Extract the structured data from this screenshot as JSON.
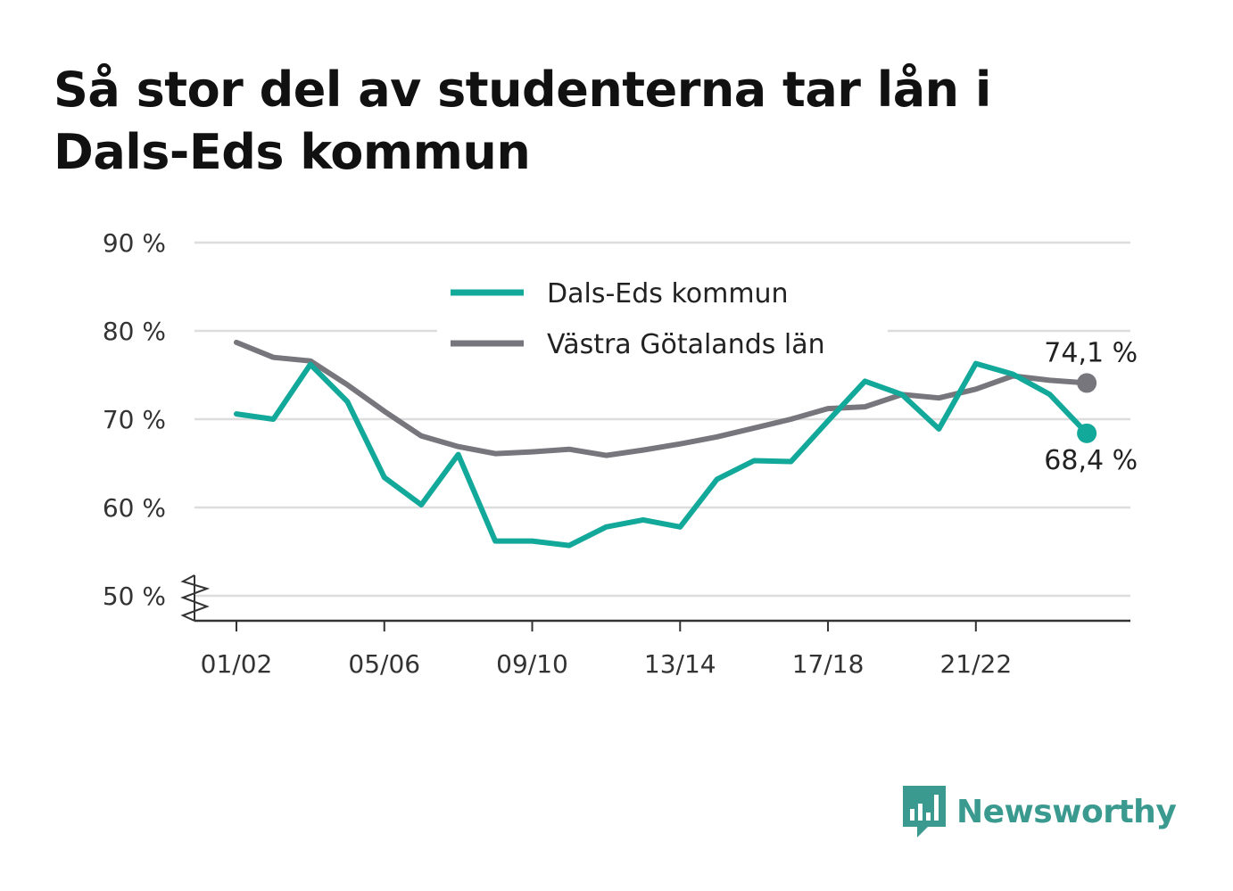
{
  "title": "Så stor del av studenterna tar lån i Dals-Eds kommun",
  "brand": {
    "name": "Newsworthy",
    "icon": "newsworthy-logo-icon",
    "color": "#3a9a90"
  },
  "chart_data": {
    "type": "line",
    "title": "Så stor del av studenterna tar lån i Dals-Eds kommun",
    "xlabel": "",
    "ylabel": "",
    "ylim": [
      50,
      90
    ],
    "y_ticks": [
      50,
      60,
      70,
      80,
      90
    ],
    "y_tick_labels": [
      "50 %",
      "60 %",
      "70 %",
      "80 %",
      "90 %"
    ],
    "y_axis_break": true,
    "grid": true,
    "legend_position": "top-center",
    "x": [
      "01/02",
      "02/03",
      "03/04",
      "04/05",
      "05/06",
      "06/07",
      "07/08",
      "08/09",
      "09/10",
      "10/11",
      "11/12",
      "12/13",
      "13/14",
      "14/15",
      "15/16",
      "16/17",
      "17/18",
      "18/19",
      "19/20",
      "20/21",
      "21/22",
      "22/23",
      "23/24",
      "24/25"
    ],
    "x_tick_labels": [
      "01/02",
      "05/06",
      "09/10",
      "13/14",
      "17/18",
      "21/22"
    ],
    "series": [
      {
        "name": "Dals-Eds kommun",
        "color": "#12a89a",
        "values": [
          70.6,
          70.0,
          76.2,
          72.0,
          63.4,
          60.3,
          66.0,
          56.2,
          56.2,
          55.7,
          57.8,
          58.6,
          57.8,
          63.2,
          65.3,
          65.2,
          69.8,
          74.3,
          72.8,
          68.9,
          76.3,
          75.1,
          72.8,
          68.4
        ],
        "end_label": "68,4 %"
      },
      {
        "name": "Västra Götalands län",
        "color": "#77767c",
        "values": [
          78.7,
          77.0,
          76.6,
          73.9,
          70.9,
          68.1,
          66.9,
          66.1,
          66.3,
          66.6,
          65.9,
          66.5,
          67.2,
          68.0,
          69.0,
          70.0,
          71.2,
          71.4,
          72.8,
          72.4,
          73.4,
          74.9,
          74.4,
          74.1
        ],
        "end_label": "74,1 %"
      }
    ]
  }
}
